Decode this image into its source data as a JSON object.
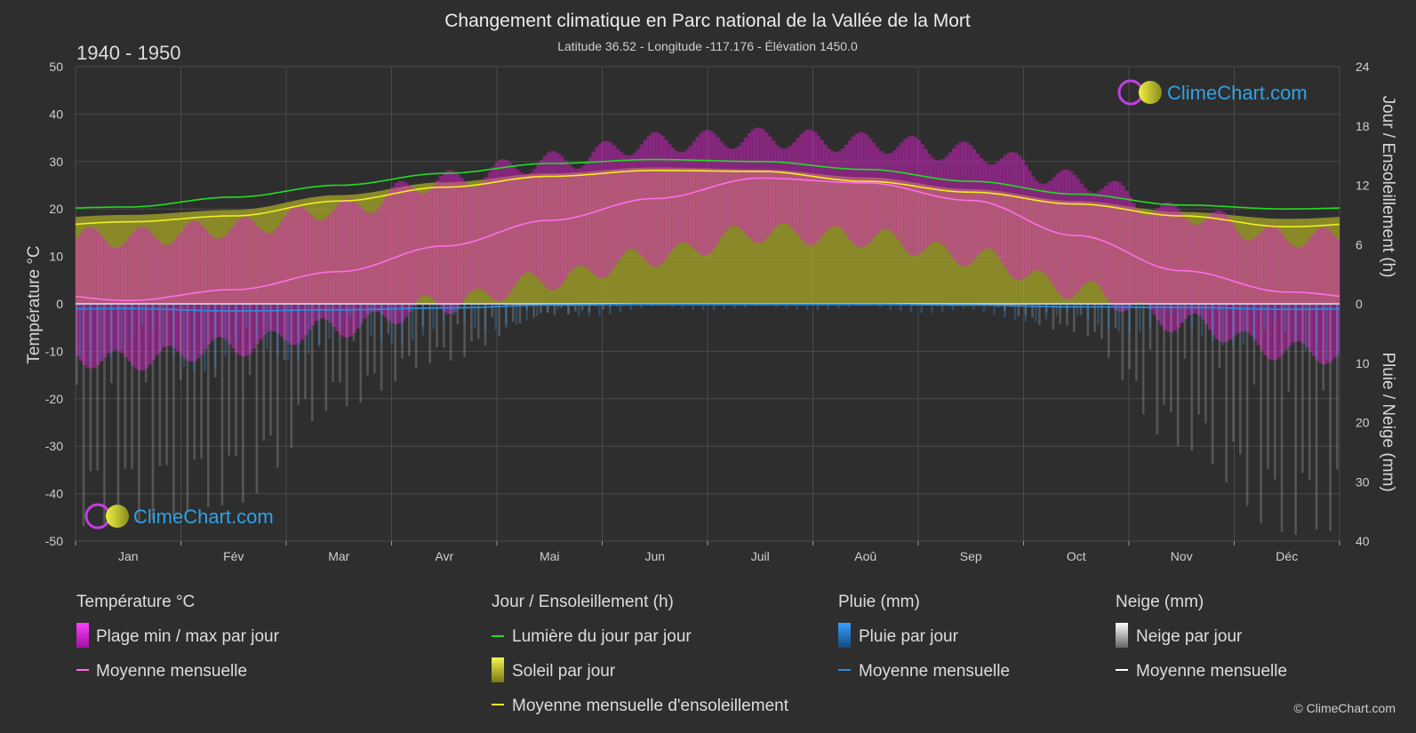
{
  "title": "Changement climatique en Parc national de la Vallée de la Mort",
  "subtitle": "Latitude 36.52 - Longitude -117.176 - Élévation 1450.0",
  "period": "1940 - 1950",
  "logo_text": "ClimeChart.com",
  "copyright": "© ClimeChart.com",
  "colors": {
    "background": "#2e2e2e",
    "temp_range": "#e020d0",
    "temp_mean": "#ff6ee8",
    "daylight": "#22dd22",
    "sunshine_mean": "#f0f020",
    "sunshine_fill": "#a8a828",
    "rain": "#2a8ad8",
    "snow": "#bbbbbb",
    "snow_mean": "#ffffff",
    "logo": "#2fa2e6"
  },
  "legend": {
    "groups": [
      {
        "heading": "Température °C",
        "items": [
          {
            "label": "Plage min / max par jour",
            "icon": "temp-range-swatch-icon"
          },
          {
            "label": "Moyenne mensuelle",
            "icon": "temp-mean-line-icon"
          }
        ]
      },
      {
        "heading": "Jour / Ensoleillement (h)",
        "items": [
          {
            "label": "Lumière du jour par jour",
            "icon": "daylight-line-icon"
          },
          {
            "label": "Soleil par jour",
            "icon": "sunshine-swatch-icon"
          },
          {
            "label": "Moyenne mensuelle d'ensoleillement",
            "icon": "sunshine-mean-line-icon"
          }
        ]
      },
      {
        "heading": "Pluie (mm)",
        "items": [
          {
            "label": "Pluie par jour",
            "icon": "rain-swatch-icon"
          },
          {
            "label": "Moyenne mensuelle",
            "icon": "rain-mean-line-icon"
          }
        ]
      },
      {
        "heading": "Neige (mm)",
        "items": [
          {
            "label": "Neige par jour",
            "icon": "snow-swatch-icon"
          },
          {
            "label": "Moyenne mensuelle",
            "icon": "snow-mean-line-icon"
          }
        ]
      }
    ]
  },
  "chart_data": {
    "type": "line",
    "categories": [
      "Jan",
      "Fév",
      "Mar",
      "Avr",
      "Mai",
      "Jun",
      "Juil",
      "Aoû",
      "Sep",
      "Oct",
      "Nov",
      "Déc"
    ],
    "axes": {
      "left": {
        "label": "Température °C",
        "min": -50,
        "max": 50,
        "ticks": [
          50,
          40,
          30,
          20,
          10,
          0,
          -10,
          -20,
          -30,
          -40,
          -50
        ]
      },
      "right_top": {
        "label": "Jour / Ensoleillement (h)",
        "min": 0,
        "max": 24,
        "ticks": [
          24,
          18,
          12,
          6,
          0
        ]
      },
      "right_bottom": {
        "label": "Pluie / Neige (mm)",
        "min": 0,
        "max": 40,
        "ticks": [
          10,
          20,
          30,
          40
        ]
      }
    },
    "grid": true,
    "series": [
      {
        "name": "Lumière du jour par jour",
        "axis": "right_top",
        "values": [
          9.8,
          10.8,
          12.0,
          13.2,
          14.2,
          14.6,
          14.4,
          13.6,
          12.4,
          11.1,
          10.0,
          9.6
        ]
      },
      {
        "name": "Moyenne mensuelle d'ensoleillement",
        "axis": "right_top",
        "values": [
          8.3,
          8.9,
          10.4,
          11.8,
          12.9,
          13.5,
          13.4,
          12.4,
          11.3,
          10.1,
          8.9,
          7.8
        ]
      },
      {
        "name": "Moyenne mensuelle",
        "group": "Température °C",
        "axis": "left",
        "values": [
          0.7,
          3.0,
          6.8,
          12.2,
          17.6,
          22.2,
          26.5,
          25.5,
          21.8,
          14.4,
          7.0,
          2.5
        ]
      },
      {
        "name": "Moyenne mensuelle",
        "group": "Pluie (mm)",
        "axis": "right_bottom",
        "values": [
          0.8,
          1.2,
          1.0,
          0.7,
          0.2,
          0.1,
          0.1,
          0.1,
          0.2,
          0.5,
          0.6,
          0.9
        ]
      }
    ],
    "temp_daily_range_monthly": {
      "min": [
        -12,
        -9,
        -5,
        0,
        5,
        10,
        15,
        14,
        10,
        3,
        -4,
        -10
      ],
      "max": [
        14,
        16,
        20,
        26,
        30,
        34,
        35,
        34,
        32,
        26,
        19,
        14
      ]
    },
    "sunshine_daily_monthly": [
      9.0,
      9.5,
      11.0,
      12.3,
      13.2,
      13.8,
      13.6,
      12.8,
      11.6,
      10.4,
      9.3,
      8.6
    ],
    "rain_daily_max_monthly": [
      10,
      12,
      8,
      6,
      3,
      1,
      1,
      1,
      2,
      4,
      6,
      9
    ],
    "snow_daily_max_monthly": [
      38,
      35,
      18,
      10,
      2,
      0,
      0,
      0,
      0,
      5,
      25,
      40
    ]
  }
}
